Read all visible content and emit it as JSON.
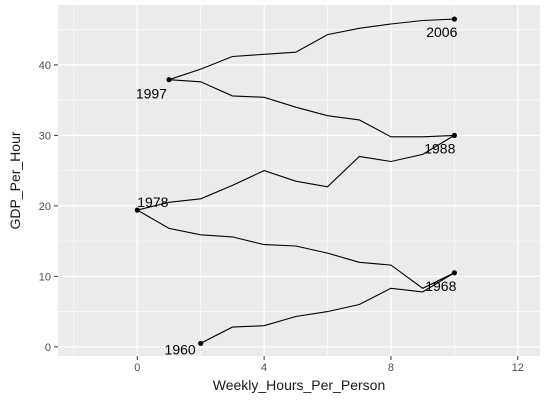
{
  "chart_data": {
    "type": "line",
    "xlabel": "Weekly_Hours_Per_Person",
    "ylabel": "GDP_Per_Hour",
    "xlim": [
      -2.5,
      12.7
    ],
    "ylim": [
      -1.3,
      48.5
    ],
    "x_ticks": [
      0,
      4,
      8,
      12
    ],
    "y_ticks": [
      0,
      10,
      20,
      30,
      40
    ],
    "grid": true,
    "background": "#ebebeb",
    "grid_major_color": "#ffffff",
    "line_color": "#000000",
    "series": [
      {
        "points": [
          {
            "x": 2,
            "y": 0.5,
            "year": "1960"
          },
          {
            "x": 3,
            "y": 2.8
          },
          {
            "x": 4,
            "y": 3.0
          },
          {
            "x": 5,
            "y": 4.3
          },
          {
            "x": 6,
            "y": 5.0
          },
          {
            "x": 7,
            "y": 6.0
          },
          {
            "x": 8,
            "y": 8.3
          },
          {
            "x": 9,
            "y": 7.8
          },
          {
            "x": 10,
            "y": 10.5,
            "year": "1968"
          },
          {
            "x": 9,
            "y": 8.3
          },
          {
            "x": 8,
            "y": 11.6
          },
          {
            "x": 7,
            "y": 12.0
          },
          {
            "x": 6,
            "y": 13.3
          },
          {
            "x": 5,
            "y": 14.3
          },
          {
            "x": 4,
            "y": 14.5
          },
          {
            "x": 3,
            "y": 15.6
          },
          {
            "x": 2,
            "y": 15.9
          },
          {
            "x": 1,
            "y": 16.8
          },
          {
            "x": 0,
            "y": 19.4,
            "year": "1978"
          },
          {
            "x": 1,
            "y": 20.5
          },
          {
            "x": 2,
            "y": 21.0
          },
          {
            "x": 3,
            "y": 22.9
          },
          {
            "x": 4,
            "y": 25.0
          },
          {
            "x": 5,
            "y": 23.5
          },
          {
            "x": 6,
            "y": 22.7
          },
          {
            "x": 7,
            "y": 27.0
          },
          {
            "x": 8,
            "y": 26.3
          },
          {
            "x": 9,
            "y": 27.3
          },
          {
            "x": 10,
            "y": 30.0,
            "year": "1988"
          },
          {
            "x": 9,
            "y": 29.8
          },
          {
            "x": 8,
            "y": 29.8
          },
          {
            "x": 7,
            "y": 32.2
          },
          {
            "x": 6,
            "y": 32.8
          },
          {
            "x": 5,
            "y": 34.0
          },
          {
            "x": 4,
            "y": 35.4
          },
          {
            "x": 3,
            "y": 35.6
          },
          {
            "x": 2,
            "y": 37.6
          },
          {
            "x": 1,
            "y": 37.9,
            "year": "1997"
          },
          {
            "x": 2,
            "y": 39.4
          },
          {
            "x": 3,
            "y": 41.2
          },
          {
            "x": 4,
            "y": 41.5
          },
          {
            "x": 5,
            "y": 41.8
          },
          {
            "x": 6,
            "y": 44.3
          },
          {
            "x": 7,
            "y": 45.2
          },
          {
            "x": 8,
            "y": 45.8
          },
          {
            "x": 9,
            "y": 46.3
          },
          {
            "x": 10,
            "y": 46.5,
            "year": "2006"
          }
        ]
      }
    ]
  }
}
